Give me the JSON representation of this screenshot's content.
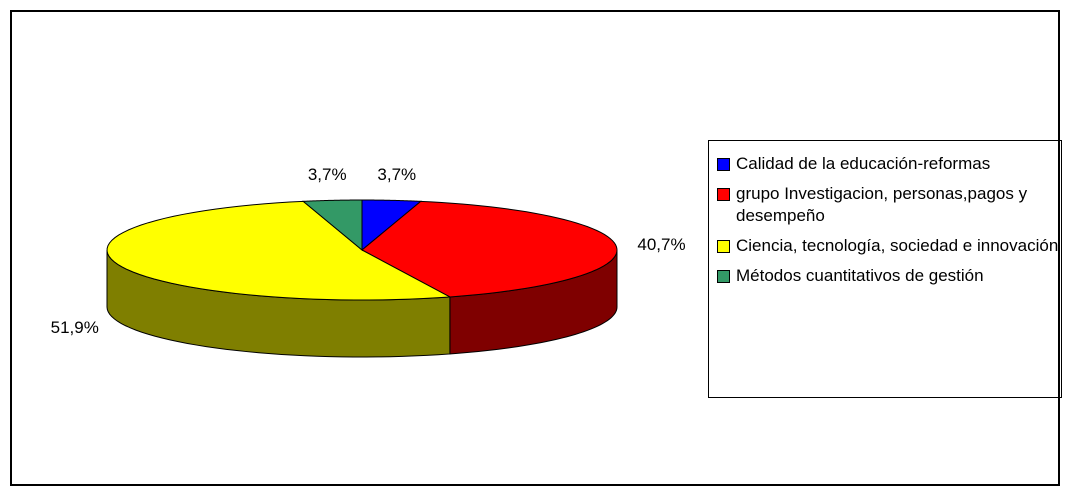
{
  "chart_data": {
    "type": "pie",
    "categories": [
      "Calidad de la educación-reformas",
      "grupo Investigacion, personas,pagos y desempeño",
      "Ciencia, tecnología, sociedad e innovación",
      "Métodos cuantitativos de gestión"
    ],
    "values": [
      3.7,
      40.7,
      51.9,
      3.7
    ],
    "value_labels": [
      "3,7%",
      "40,7%",
      "51,9%",
      "3,7%"
    ],
    "colors": [
      "#0000ff",
      "#ff0000",
      "#ffff00",
      "#339966"
    ],
    "legend": "right"
  }
}
